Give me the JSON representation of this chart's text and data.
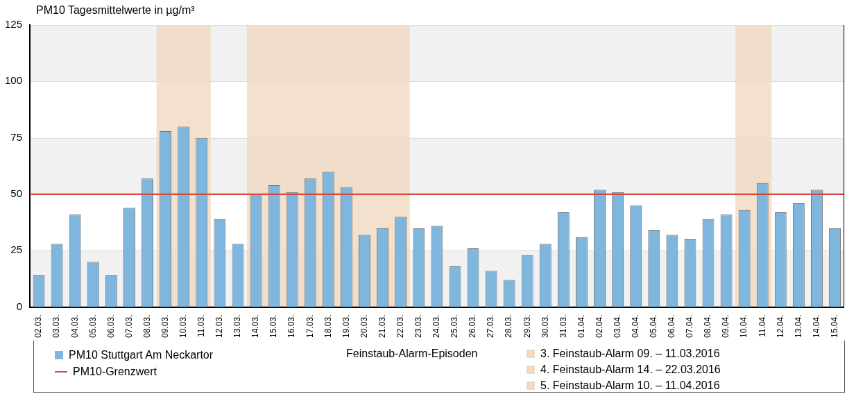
{
  "chart_data": {
    "type": "bar",
    "title": "PM10 Tagesmittelwerte in µg/m³",
    "categories": [
      "02.03.",
      "03.03.",
      "04.03.",
      "05.03.",
      "06.03.",
      "07.03.",
      "08.03.",
      "09.03.",
      "10.03.",
      "11.03.",
      "12.03.",
      "13.03.",
      "14.03.",
      "15.03.",
      "16.03.",
      "17.03.",
      "18.03.",
      "19.03.",
      "20.03.",
      "21.03.",
      "22.03.",
      "23.03.",
      "24.03.",
      "25.03.",
      "26.03.",
      "27.03.",
      "28.03.",
      "29.03.",
      "30.03.",
      "31.03.",
      "01.04.",
      "02.04.",
      "03.04.",
      "04.04.",
      "05.04.",
      "06.04.",
      "07.04.",
      "08.04.",
      "09.04.",
      "10.04.",
      "11.04.",
      "12.04.",
      "13.04.",
      "14.04.",
      "15.04."
    ],
    "series": [
      {
        "name": "PM10 Stuttgart Am Neckartor",
        "color": "#7eb6dd",
        "values": [
          14,
          28,
          41,
          20,
          14,
          44,
          57,
          78,
          80,
          75,
          39,
          28,
          50,
          54,
          51,
          57,
          60,
          53,
          32,
          35,
          40,
          35,
          36,
          18,
          26,
          16,
          12,
          23,
          28,
          42,
          31,
          52,
          51,
          45,
          34,
          32,
          30,
          39,
          41,
          43,
          55,
          42,
          46,
          52,
          35
        ]
      }
    ],
    "ylim": [
      0,
      125
    ],
    "yticks": [
      0,
      25,
      50,
      75,
      100,
      125
    ],
    "grid": "y",
    "legend": "bottom",
    "legend_title": "Feinstaub-Alarm-Episoden",
    "ref_lines": [
      {
        "axis": "y",
        "value": 50,
        "label": "PM10-Grenzwert",
        "color": "#d9453a"
      }
    ],
    "bands": [
      {
        "axis": "x",
        "from": "09.03.",
        "to": "11.03.",
        "label": "3. Feinstaub-Alarm 09. – 11.03.2016",
        "color": "#f0d9c0"
      },
      {
        "axis": "x",
        "from": "14.03.",
        "to": "22.03.",
        "label": "4. Feinstaub-Alarm 14. – 22.03.2016",
        "color": "#f0d9c0"
      },
      {
        "axis": "x",
        "from": "10.04.",
        "to": "11.04.",
        "label": "5. Feinstaub-Alarm 10. – 11.04.2016",
        "color": "#f0d9c0"
      }
    ]
  }
}
